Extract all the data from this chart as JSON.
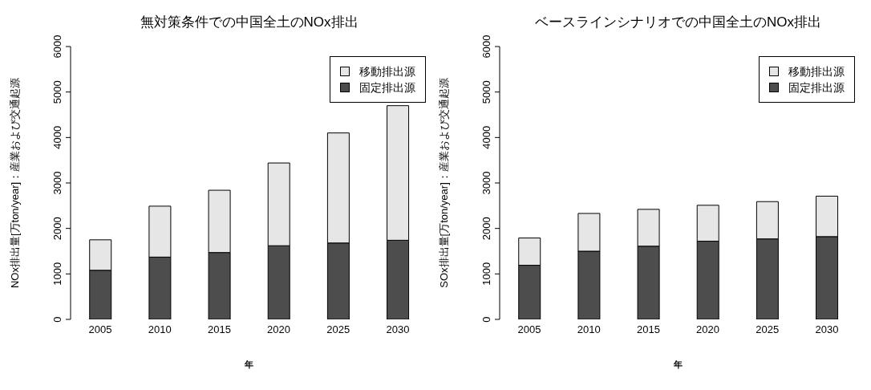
{
  "chart_data": [
    {
      "type": "bar",
      "title": "無対策条件での中国全土のNOx排出",
      "xlabel": "年",
      "ylabel": "NOx排出量[万ton/year]：産業および交通起源",
      "categories": [
        "2005",
        "2010",
        "2015",
        "2020",
        "2025",
        "2030"
      ],
      "stacked": true,
      "series": [
        {
          "name": "固定排出源",
          "color": "#4d4d4d",
          "values": [
            1080,
            1370,
            1470,
            1620,
            1680,
            1740
          ]
        },
        {
          "name": "移動排出源",
          "color": "#e6e6e6",
          "values": [
            670,
            1120,
            1370,
            1820,
            2420,
            2960
          ]
        }
      ],
      "ylim": [
        0,
        6000
      ],
      "yticks": [
        0,
        1000,
        2000,
        3000,
        4000,
        5000,
        6000
      ],
      "legend": "top right"
    },
    {
      "type": "bar",
      "title": "ベースラインシナリオでの中国全土のNOx排出",
      "xlabel": "年",
      "ylabel": "SOx排出量[万ton/year]：産業および交通起源",
      "categories": [
        "2005",
        "2010",
        "2015",
        "2020",
        "2025",
        "2030"
      ],
      "stacked": true,
      "series": [
        {
          "name": "固定排出源",
          "color": "#4d4d4d",
          "values": [
            1190,
            1500,
            1610,
            1720,
            1770,
            1820
          ]
        },
        {
          "name": "移動排出源",
          "color": "#e6e6e6",
          "values": [
            600,
            830,
            810,
            790,
            820,
            890
          ]
        }
      ],
      "ylim": [
        0,
        6000
      ],
      "yticks": [
        0,
        1000,
        2000,
        3000,
        4000,
        5000,
        6000
      ],
      "legend": "top right"
    }
  ]
}
